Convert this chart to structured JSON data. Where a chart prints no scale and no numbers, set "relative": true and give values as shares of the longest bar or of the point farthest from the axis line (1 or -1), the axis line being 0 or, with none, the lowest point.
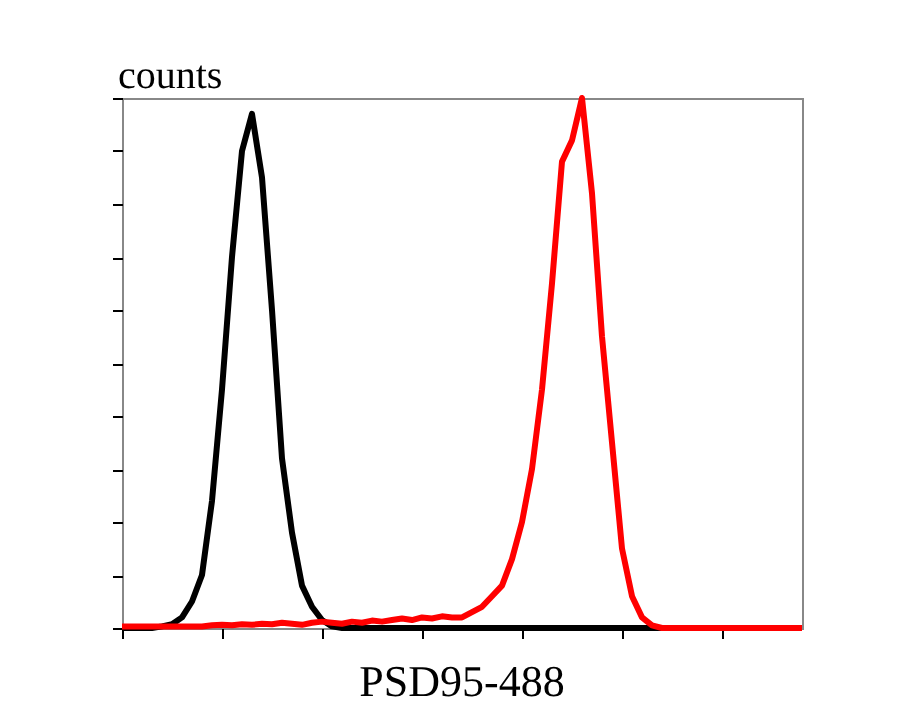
{
  "chart_data": {
    "type": "line",
    "relative": true,
    "xlabel": "PSD95-488",
    "ylabel": "counts",
    "tick_labels": false,
    "grid": false,
    "marker": "none",
    "line_style": "solid",
    "categories": [
      null,
      null,
      null,
      null,
      null,
      null,
      null,
      null,
      null,
      null,
      null,
      null,
      null,
      null,
      null,
      null,
      null,
      null,
      null,
      null,
      null,
      null,
      null,
      null,
      null,
      null,
      null,
      null,
      null,
      null,
      null,
      null,
      null,
      null,
      null,
      null,
      null,
      null,
      null,
      null,
      null,
      null,
      null,
      null,
      null,
      null,
      null,
      null,
      null,
      null,
      null,
      null,
      null,
      null,
      null,
      null,
      null,
      null,
      null,
      null,
      null,
      null,
      null,
      null,
      null,
      null,
      null,
      null,
      null
    ],
    "series": [
      {
        "color": "#000000",
        "values": [
          0,
          0,
          0,
          0,
          0.003,
          0.007,
          0.02,
          0.05,
          0.1,
          0.24,
          0.45,
          0.7,
          0.9,
          0.97,
          0.85,
          0.6,
          0.32,
          0.18,
          0.08,
          0.04,
          0.015,
          0.003,
          0,
          0,
          0,
          0,
          0,
          0,
          0,
          0,
          0,
          0,
          0,
          0,
          0,
          0,
          0,
          0,
          0,
          0,
          0,
          0,
          0,
          0,
          0,
          0,
          0,
          0,
          0,
          0,
          0,
          0,
          0,
          0,
          0,
          0,
          0,
          0,
          0,
          0,
          0,
          0,
          0,
          0,
          0,
          0,
          0,
          0,
          0
        ]
      },
      {
        "color": "#ff0000",
        "values": [
          0.003,
          0.003,
          0.003,
          0.003,
          0.003,
          0.003,
          0.003,
          0.003,
          0.003,
          0.005,
          0.006,
          0.005,
          0.007,
          0.006,
          0.008,
          0.007,
          0.01,
          0.008,
          0.006,
          0.01,
          0.012,
          0.01,
          0.008,
          0.012,
          0.01,
          0.014,
          0.012,
          0.015,
          0.018,
          0.015,
          0.02,
          0.018,
          0.022,
          0.02,
          0.02,
          0.03,
          0.04,
          0.06,
          0.08,
          0.13,
          0.2,
          0.3,
          0.45,
          0.65,
          0.88,
          0.92,
          1,
          0.82,
          0.55,
          0.35,
          0.15,
          0.06,
          0.02,
          0.005,
          0,
          0,
          0,
          0,
          0,
          0,
          0,
          0,
          0,
          0,
          0,
          0,
          0,
          0,
          0
        ]
      }
    ]
  }
}
